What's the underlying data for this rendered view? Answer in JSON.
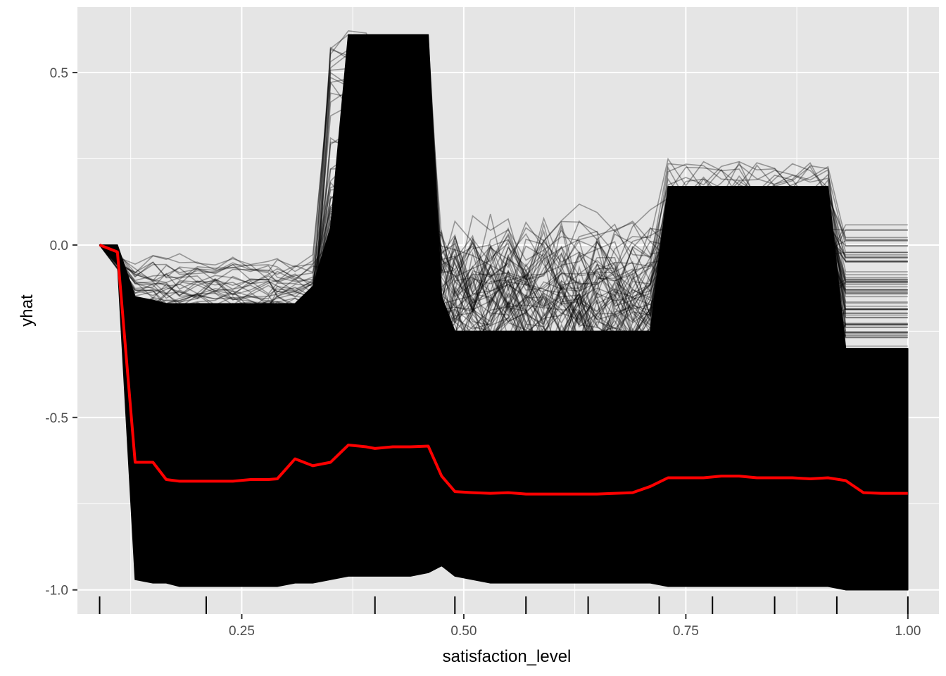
{
  "chart_data": {
    "type": "line",
    "title": "",
    "xlabel": "satisfaction_level",
    "ylabel": "yhat",
    "xlim": [
      0.065,
      1.035
    ],
    "ylim": [
      -1.07,
      0.69
    ],
    "x_ticks": [
      {
        "value": 0.25,
        "label": "0.25"
      },
      {
        "value": 0.5,
        "label": "0.50"
      },
      {
        "value": 0.75,
        "label": "0.75"
      },
      {
        "value": 1.0,
        "label": "1.00"
      }
    ],
    "y_ticks": [
      {
        "value": 0.5,
        "label": "0.5"
      },
      {
        "value": 0.0,
        "label": "0.0"
      },
      {
        "value": -0.5,
        "label": "-0.5"
      },
      {
        "value": -1.0,
        "label": "-1.0"
      }
    ],
    "grid": true,
    "legend": "none",
    "rug_x": [
      0.09,
      0.21,
      0.4,
      0.49,
      0.57,
      0.64,
      0.72,
      0.78,
      0.85,
      0.92,
      1.0
    ],
    "colors": {
      "panel": "#e5e5e5",
      "grid_major": "#ffffff",
      "ice_lines": "#000000",
      "average_line": "#ff0000"
    },
    "x_grid": [
      0.09,
      0.11,
      0.13,
      0.15,
      0.165,
      0.18,
      0.2,
      0.22,
      0.24,
      0.26,
      0.28,
      0.29,
      0.31,
      0.33,
      0.35,
      0.37,
      0.39,
      0.4,
      0.42,
      0.44,
      0.46,
      0.475,
      0.49,
      0.51,
      0.53,
      0.55,
      0.57,
      0.59,
      0.61,
      0.63,
      0.65,
      0.67,
      0.69,
      0.71,
      0.73,
      0.75,
      0.77,
      0.79,
      0.81,
      0.83,
      0.85,
      0.87,
      0.89,
      0.91,
      0.93,
      0.95,
      0.97,
      1.0
    ],
    "ice_envelope": {
      "upper": [
        0.0,
        0.0,
        -0.15,
        -0.16,
        -0.17,
        -0.17,
        -0.17,
        -0.17,
        -0.17,
        -0.17,
        -0.17,
        -0.17,
        -0.17,
        -0.12,
        0.05,
        0.61,
        0.61,
        0.61,
        0.61,
        0.61,
        0.61,
        -0.15,
        -0.25,
        -0.25,
        -0.25,
        -0.25,
        -0.25,
        -0.25,
        -0.25,
        -0.25,
        -0.25,
        -0.25,
        -0.25,
        -0.25,
        0.17,
        0.17,
        0.17,
        0.17,
        0.17,
        0.17,
        0.17,
        0.17,
        0.17,
        0.17,
        -0.3,
        -0.3,
        -0.3,
        -0.3
      ],
      "lower": [
        0.0,
        -0.05,
        -0.97,
        -0.98,
        -0.98,
        -0.99,
        -0.99,
        -0.99,
        -0.99,
        -0.99,
        -0.99,
        -0.99,
        -0.98,
        -0.98,
        -0.97,
        -0.96,
        -0.96,
        -0.96,
        -0.96,
        -0.96,
        -0.95,
        -0.93,
        -0.96,
        -0.97,
        -0.98,
        -0.98,
        -0.98,
        -0.98,
        -0.98,
        -0.98,
        -0.98,
        -0.98,
        -0.98,
        -0.98,
        -0.99,
        -0.99,
        -0.99,
        -0.99,
        -0.99,
        -0.99,
        -0.99,
        -0.99,
        -0.99,
        -0.99,
        -1.0,
        -1.0,
        -1.0,
        -1.0
      ]
    },
    "series": [
      {
        "values": [
          0.0,
          -0.02,
          -0.63,
          -0.63,
          -0.68,
          -0.685,
          -0.685,
          -0.685,
          -0.685,
          -0.68,
          -0.68,
          -0.678,
          -0.62,
          -0.64,
          -0.63,
          -0.58,
          -0.585,
          -0.59,
          -0.585,
          -0.585,
          -0.583,
          -0.67,
          -0.715,
          -0.718,
          -0.72,
          -0.718,
          -0.722,
          -0.722,
          -0.722,
          -0.722,
          -0.722,
          -0.72,
          -0.718,
          -0.7,
          -0.675,
          -0.675,
          -0.675,
          -0.67,
          -0.67,
          -0.675,
          -0.675,
          -0.675,
          -0.678,
          -0.675,
          -0.683,
          -0.718,
          -0.72,
          -0.72
        ]
      }
    ]
  }
}
